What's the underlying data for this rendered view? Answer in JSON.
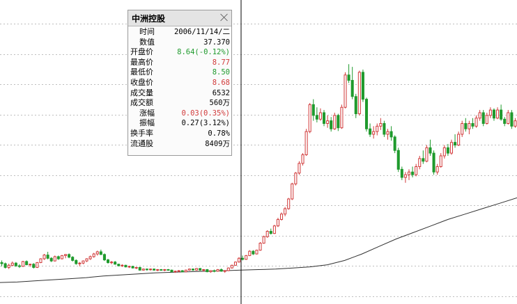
{
  "colors": {
    "up": "#d13a3a",
    "down": "#1f9a2d",
    "neutral": "#000000",
    "grid": "#bdbdbd",
    "ma_line": "#303030",
    "crosshair": "#000000"
  },
  "chart_data": {
    "type": "candlestick",
    "title": "",
    "grid": "horizontal dotted",
    "series": [
      {
        "name": "",
        "kind": "candles",
        "values": "see candles"
      },
      {
        "name": "",
        "kind": "moving-average line"
      }
    ],
    "candles": [
      [
        0.42,
        0.46,
        0.35,
        0.4
      ],
      [
        0.4,
        0.42,
        0.31,
        0.33
      ],
      [
        0.33,
        0.4,
        0.3,
        0.37
      ],
      [
        0.37,
        0.44,
        0.35,
        0.41
      ],
      [
        0.41,
        0.43,
        0.34,
        0.36
      ],
      [
        0.36,
        0.39,
        0.32,
        0.35
      ],
      [
        0.35,
        0.45,
        0.34,
        0.44
      ],
      [
        0.44,
        0.46,
        0.37,
        0.38
      ],
      [
        0.38,
        0.4,
        0.34,
        0.39
      ],
      [
        0.39,
        0.41,
        0.31,
        0.33
      ],
      [
        0.33,
        0.43,
        0.32,
        0.42
      ],
      [
        0.42,
        0.5,
        0.41,
        0.49
      ],
      [
        0.49,
        0.58,
        0.47,
        0.56
      ],
      [
        0.56,
        0.62,
        0.48,
        0.5
      ],
      [
        0.5,
        0.52,
        0.43,
        0.45
      ],
      [
        0.45,
        0.55,
        0.44,
        0.53
      ],
      [
        0.53,
        0.55,
        0.47,
        0.49
      ],
      [
        0.49,
        0.56,
        0.48,
        0.55
      ],
      [
        0.55,
        0.58,
        0.5,
        0.57
      ],
      [
        0.57,
        0.59,
        0.5,
        0.52
      ],
      [
        0.52,
        0.54,
        0.44,
        0.46
      ],
      [
        0.46,
        0.48,
        0.38,
        0.4
      ],
      [
        0.4,
        0.43,
        0.35,
        0.41
      ],
      [
        0.41,
        0.46,
        0.39,
        0.45
      ],
      [
        0.45,
        0.5,
        0.43,
        0.49
      ],
      [
        0.49,
        0.55,
        0.47,
        0.53
      ],
      [
        0.53,
        0.6,
        0.51,
        0.58
      ],
      [
        0.58,
        0.64,
        0.55,
        0.62
      ],
      [
        0.62,
        0.66,
        0.56,
        0.57
      ],
      [
        0.57,
        0.59,
        0.45,
        0.47
      ],
      [
        0.47,
        0.49,
        0.4,
        0.42
      ],
      [
        0.42,
        0.45,
        0.39,
        0.43
      ],
      [
        0.43,
        0.45,
        0.38,
        0.39
      ],
      [
        0.39,
        0.4,
        0.35,
        0.36
      ],
      [
        0.36,
        0.39,
        0.34,
        0.37
      ],
      [
        0.37,
        0.38,
        0.33,
        0.34
      ],
      [
        0.34,
        0.36,
        0.32,
        0.35
      ],
      [
        0.35,
        0.36,
        0.31,
        0.32
      ],
      [
        0.32,
        0.34,
        0.3,
        0.33
      ],
      [
        0.33,
        0.34,
        0.27,
        0.28
      ],
      [
        0.28,
        0.31,
        0.27,
        0.3
      ],
      [
        0.3,
        0.31,
        0.27,
        0.29
      ],
      [
        0.29,
        0.31,
        0.27,
        0.3
      ],
      [
        0.3,
        0.31,
        0.27,
        0.28
      ],
      [
        0.28,
        0.3,
        0.26,
        0.29
      ],
      [
        0.29,
        0.3,
        0.27,
        0.28
      ],
      [
        0.28,
        0.3,
        0.26,
        0.29
      ],
      [
        0.29,
        0.3,
        0.27,
        0.28
      ],
      [
        0.28,
        0.29,
        0.24,
        0.25
      ],
      [
        0.25,
        0.27,
        0.23,
        0.26
      ],
      [
        0.26,
        0.28,
        0.24,
        0.27
      ],
      [
        0.27,
        0.28,
        0.24,
        0.25
      ],
      [
        0.25,
        0.29,
        0.24,
        0.28
      ],
      [
        0.28,
        0.31,
        0.27,
        0.3
      ],
      [
        0.3,
        0.31,
        0.27,
        0.28
      ],
      [
        0.28,
        0.32,
        0.27,
        0.31
      ],
      [
        0.31,
        0.32,
        0.27,
        0.28
      ],
      [
        0.28,
        0.3,
        0.25,
        0.29
      ],
      [
        0.29,
        0.3,
        0.24,
        0.25
      ],
      [
        0.25,
        0.28,
        0.23,
        0.27
      ],
      [
        0.27,
        0.29,
        0.24,
        0.26
      ],
      [
        0.26,
        0.3,
        0.25,
        0.29
      ],
      [
        0.29,
        0.31,
        0.25,
        0.26
      ],
      [
        0.26,
        0.28,
        0.23,
        0.27
      ],
      [
        0.27,
        0.33,
        0.26,
        0.32
      ],
      [
        0.32,
        0.38,
        0.31,
        0.37
      ],
      [
        0.37,
        0.44,
        0.36,
        0.43
      ],
      [
        0.43,
        0.52,
        0.42,
        0.5
      ],
      [
        0.5,
        0.55,
        0.46,
        0.48
      ],
      [
        0.48,
        0.56,
        0.47,
        0.55
      ],
      [
        0.55,
        0.65,
        0.54,
        0.63
      ],
      [
        0.63,
        0.65,
        0.56,
        0.58
      ],
      [
        0.58,
        0.66,
        0.57,
        0.65
      ],
      [
        0.65,
        0.8,
        0.64,
        0.78
      ],
      [
        0.78,
        0.92,
        0.77,
        0.9
      ],
      [
        0.9,
        1.02,
        0.88,
        1.0
      ],
      [
        1.0,
        1.05,
        0.94,
        0.96
      ],
      [
        0.96,
        1.12,
        0.95,
        1.1
      ],
      [
        1.1,
        1.25,
        1.08,
        1.22
      ],
      [
        1.22,
        1.35,
        1.2,
        1.32
      ],
      [
        1.32,
        1.45,
        1.28,
        1.42
      ],
      [
        1.42,
        1.62,
        1.4,
        1.6
      ],
      [
        1.6,
        1.9,
        1.58,
        1.88
      ],
      [
        1.88,
        2.1,
        1.85,
        2.08
      ],
      [
        2.08,
        2.3,
        2.05,
        2.26
      ],
      [
        2.26,
        2.45,
        2.22,
        2.42
      ],
      [
        2.42,
        2.9,
        2.4,
        2.85
      ],
      [
        2.85,
        3.38,
        2.82,
        3.35
      ],
      [
        3.35,
        3.45,
        3.05,
        3.15
      ],
      [
        3.15,
        3.3,
        3.02,
        3.08
      ],
      [
        3.08,
        3.28,
        3.05,
        3.2
      ],
      [
        3.2,
        3.25,
        2.95,
        3.0
      ],
      [
        3.0,
        3.15,
        2.92,
        3.05
      ],
      [
        3.05,
        3.12,
        2.85,
        2.9
      ],
      [
        2.9,
        3.2,
        2.88,
        3.15
      ],
      [
        3.15,
        3.18,
        2.86,
        2.92
      ],
      [
        2.92,
        3.35,
        2.9,
        3.3
      ],
      [
        3.3,
        3.95,
        3.28,
        3.9
      ],
      [
        3.9,
        4.1,
        3.75,
        3.8
      ],
      [
        3.8,
        4.05,
        3.45,
        3.5
      ],
      [
        3.5,
        3.55,
        3.1,
        3.18
      ],
      [
        3.18,
        3.98,
        3.15,
        3.95
      ],
      [
        3.95,
        4.0,
        3.4,
        3.45
      ],
      [
        3.45,
        3.48,
        2.85,
        2.9
      ],
      [
        2.9,
        3.0,
        2.75,
        2.8
      ],
      [
        2.8,
        2.95,
        2.72,
        2.85
      ],
      [
        2.85,
        3.0,
        2.78,
        2.95
      ],
      [
        2.95,
        3.1,
        2.88,
        3.0
      ],
      [
        3.0,
        3.05,
        2.75,
        2.8
      ],
      [
        2.8,
        2.9,
        2.7,
        2.85
      ],
      [
        2.85,
        2.95,
        2.68,
        2.75
      ],
      [
        2.75,
        2.78,
        2.45,
        2.5
      ],
      [
        2.5,
        2.55,
        2.1,
        2.15
      ],
      [
        2.15,
        2.2,
        1.95,
        2.0
      ],
      [
        2.0,
        2.1,
        1.9,
        2.05
      ],
      [
        2.05,
        2.15,
        1.95,
        2.1
      ],
      [
        2.1,
        2.2,
        2.0,
        2.05
      ],
      [
        2.05,
        2.25,
        2.02,
        2.2
      ],
      [
        2.2,
        2.4,
        2.15,
        2.35
      ],
      [
        2.35,
        2.5,
        2.25,
        2.3
      ],
      [
        2.3,
        2.6,
        2.28,
        2.55
      ],
      [
        2.55,
        2.7,
        2.4,
        2.45
      ],
      [
        2.45,
        2.5,
        2.05,
        2.1
      ],
      [
        2.1,
        2.25,
        2.05,
        2.2
      ],
      [
        2.2,
        2.45,
        2.18,
        2.4
      ],
      [
        2.4,
        2.6,
        2.35,
        2.55
      ],
      [
        2.55,
        2.62,
        2.4,
        2.45
      ],
      [
        2.45,
        2.7,
        2.42,
        2.65
      ],
      [
        2.65,
        2.8,
        2.55,
        2.6
      ],
      [
        2.6,
        2.85,
        2.58,
        2.8
      ],
      [
        2.8,
        3.05,
        2.75,
        3.0
      ],
      [
        3.0,
        3.1,
        2.85,
        2.9
      ],
      [
        2.9,
        3.05,
        2.8,
        3.0
      ],
      [
        3.0,
        3.1,
        2.9,
        2.95
      ],
      [
        2.95,
        3.15,
        2.92,
        3.1
      ],
      [
        3.1,
        3.25,
        3.05,
        3.2
      ],
      [
        3.2,
        3.25,
        2.95,
        3.0
      ],
      [
        3.0,
        3.2,
        2.98,
        3.15
      ],
      [
        3.15,
        3.3,
        3.1,
        3.25
      ],
      [
        3.25,
        3.28,
        3.05,
        3.1
      ],
      [
        3.1,
        3.3,
        3.08,
        3.25
      ],
      [
        3.25,
        3.35,
        3.05,
        3.08
      ],
      [
        3.08,
        3.12,
        2.95,
        3.0
      ],
      [
        3.0,
        3.25,
        2.98,
        3.2
      ],
      [
        3.2,
        3.25,
        2.9,
        2.95
      ],
      [
        2.95,
        3.1,
        2.92,
        3.05
      ]
    ],
    "moving_average": [
      0.05,
      0.06,
      0.08,
      0.1,
      0.12,
      0.14,
      0.17,
      0.19,
      0.21,
      0.23,
      0.24,
      0.25,
      0.26,
      0.27,
      0.28,
      0.29,
      0.3,
      0.32,
      0.34,
      0.38,
      0.46,
      0.58,
      0.72,
      0.86,
      0.98,
      1.1,
      1.22,
      1.32,
      1.42,
      1.52,
      1.62
    ]
  },
  "info_panel": {
    "title": "中洲控股",
    "rows": [
      {
        "label": "时间",
        "value": "2006/11/14/二",
        "color": "#000000",
        "indent": true
      },
      {
        "label": "数值",
        "value": "37.370",
        "color": "#000000",
        "indent": true
      },
      {
        "label": "开盘价",
        "value": "8.64(-0.12%)",
        "color": "#1f9a2d",
        "indent": false
      },
      {
        "label": "最高价",
        "value": "8.77",
        "color": "#d13a3a",
        "indent": false
      },
      {
        "label": "最低价",
        "value": "8.50",
        "color": "#1f9a2d",
        "indent": false
      },
      {
        "label": "收盘价",
        "value": "8.68",
        "color": "#d13a3a",
        "indent": false
      },
      {
        "label": "成交量",
        "value": "6532",
        "color": "#000000",
        "indent": false
      },
      {
        "label": "成交额",
        "value": "560万",
        "color": "#000000",
        "indent": false
      },
      {
        "label": "涨幅",
        "value": "0.03(0.35%)",
        "color": "#d13a3a",
        "indent": true
      },
      {
        "label": "振幅",
        "value": "0.27(3.12%)",
        "color": "#000000",
        "indent": true
      },
      {
        "label": "换手率",
        "value": "0.78%",
        "color": "#000000",
        "indent": false
      },
      {
        "label": "流通股",
        "value": "8409万",
        "color": "#000000",
        "indent": false
      }
    ]
  }
}
